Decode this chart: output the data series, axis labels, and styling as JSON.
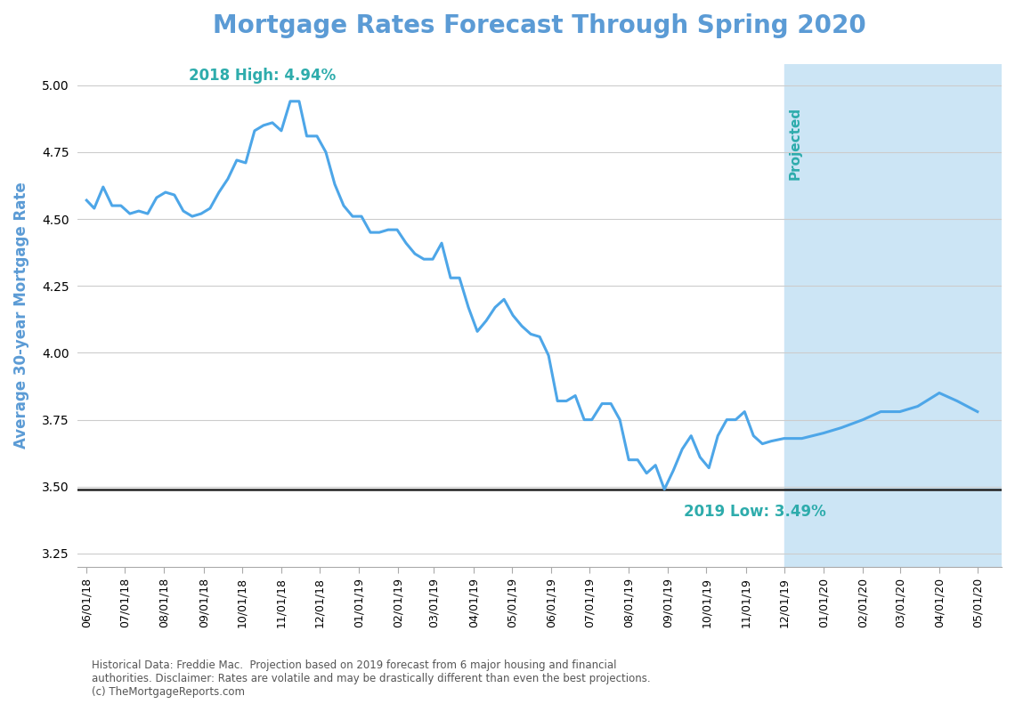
{
  "title": "Mortgage Rates Forecast Through Spring 2020",
  "title_color": "#5b9bd5",
  "ylabel": "Average 30-year Mortgage Rate",
  "ylabel_color": "#5b9bd5",
  "line_color": "#4da6e8",
  "projected_bg_color": "#cce5f5",
  "projected_label_color": "#2eacac",
  "projected_label": "Projected",
  "annotation_high_text": "2018 High: 4.94%",
  "annotation_low_text": "2019 Low: 3.49%",
  "annotation_color": "#2eacac",
  "hline_value": 3.49,
  "hline_color": "#222222",
  "ylim": [
    3.2,
    5.08
  ],
  "yticks": [
    3.25,
    3.5,
    3.75,
    4.0,
    4.25,
    4.5,
    4.75,
    5.0
  ],
  "footnote": "Historical Data: Freddie Mac.  Projection based on 2019 forecast from 6 major housing and financial\nauthorities. Disclaimer: Rates are volatile and may be drastically different than even the best projections.\n(c) TheMortgageReports.com",
  "projection_start_date": "2019-12-01",
  "xlim_start": "2018-05-25",
  "xlim_end": "2020-05-20",
  "dates": [
    "2018-06-01",
    "2018-06-07",
    "2018-06-14",
    "2018-06-21",
    "2018-06-28",
    "2018-07-05",
    "2018-07-12",
    "2018-07-19",
    "2018-07-26",
    "2018-08-02",
    "2018-08-09",
    "2018-08-16",
    "2018-08-23",
    "2018-08-30",
    "2018-09-06",
    "2018-09-13",
    "2018-09-20",
    "2018-09-27",
    "2018-10-04",
    "2018-10-11",
    "2018-10-18",
    "2018-10-25",
    "2018-11-01",
    "2018-11-08",
    "2018-11-15",
    "2018-11-21",
    "2018-11-29",
    "2018-12-06",
    "2018-12-13",
    "2018-12-20",
    "2018-12-27",
    "2019-01-03",
    "2019-01-10",
    "2019-01-17",
    "2019-01-24",
    "2019-01-31",
    "2019-02-07",
    "2019-02-14",
    "2019-02-21",
    "2019-02-28",
    "2019-03-07",
    "2019-03-14",
    "2019-03-21",
    "2019-03-28",
    "2019-04-04",
    "2019-04-11",
    "2019-04-18",
    "2019-04-25",
    "2019-05-02",
    "2019-05-09",
    "2019-05-16",
    "2019-05-23",
    "2019-05-30",
    "2019-06-06",
    "2019-06-13",
    "2019-06-20",
    "2019-06-27",
    "2019-07-03",
    "2019-07-11",
    "2019-07-18",
    "2019-07-25",
    "2019-08-01",
    "2019-08-08",
    "2019-08-15",
    "2019-08-22",
    "2019-08-29",
    "2019-09-05",
    "2019-09-12",
    "2019-09-19",
    "2019-09-26",
    "2019-10-03",
    "2019-10-10",
    "2019-10-17",
    "2019-10-24",
    "2019-10-31",
    "2019-11-07",
    "2019-11-14",
    "2019-11-21",
    "2019-12-01",
    "2019-12-15",
    "2020-01-01",
    "2020-01-15",
    "2020-02-01",
    "2020-02-15",
    "2020-03-01",
    "2020-03-15",
    "2020-04-01",
    "2020-04-15",
    "2020-05-01"
  ],
  "rates": [
    4.57,
    4.54,
    4.62,
    4.55,
    4.55,
    4.52,
    4.53,
    4.52,
    4.58,
    4.6,
    4.59,
    4.53,
    4.51,
    4.52,
    4.54,
    4.6,
    4.65,
    4.72,
    4.71,
    4.83,
    4.85,
    4.86,
    4.83,
    4.94,
    4.94,
    4.81,
    4.81,
    4.75,
    4.63,
    4.55,
    4.51,
    4.51,
    4.45,
    4.45,
    4.46,
    4.46,
    4.41,
    4.37,
    4.35,
    4.35,
    4.41,
    4.28,
    4.28,
    4.17,
    4.08,
    4.12,
    4.17,
    4.2,
    4.14,
    4.1,
    4.07,
    4.06,
    3.99,
    3.82,
    3.82,
    3.84,
    3.75,
    3.75,
    3.81,
    3.81,
    3.75,
    3.6,
    3.6,
    3.55,
    3.58,
    3.49,
    3.56,
    3.64,
    3.69,
    3.61,
    3.57,
    3.69,
    3.75,
    3.75,
    3.78,
    3.69,
    3.66,
    3.67,
    3.68,
    3.68,
    3.7,
    3.72,
    3.75,
    3.78,
    3.78,
    3.8,
    3.85,
    3.82,
    3.78
  ],
  "xtick_labels": [
    "06/01/18",
    "07/01/18",
    "08/01/18",
    "09/01/18",
    "10/01/18",
    "11/01/18",
    "12/01/18",
    "01/01/19",
    "02/01/19",
    "03/01/19",
    "04/01/19",
    "05/01/19",
    "06/01/19",
    "07/01/19",
    "08/01/19",
    "09/01/19",
    "10/01/19",
    "11/01/19",
    "12/01/19",
    "01/01/20",
    "02/01/20",
    "03/01/20",
    "04/01/20",
    "05/01/20"
  ],
  "xtick_dates": [
    "2018-06-01",
    "2018-07-01",
    "2018-08-01",
    "2018-09-01",
    "2018-10-01",
    "2018-11-01",
    "2018-12-01",
    "2019-01-01",
    "2019-02-01",
    "2019-03-01",
    "2019-04-01",
    "2019-05-01",
    "2019-06-01",
    "2019-07-01",
    "2019-08-01",
    "2019-09-01",
    "2019-10-01",
    "2019-11-01",
    "2019-12-01",
    "2020-01-01",
    "2020-02-01",
    "2020-03-01",
    "2020-04-01",
    "2020-05-01"
  ]
}
